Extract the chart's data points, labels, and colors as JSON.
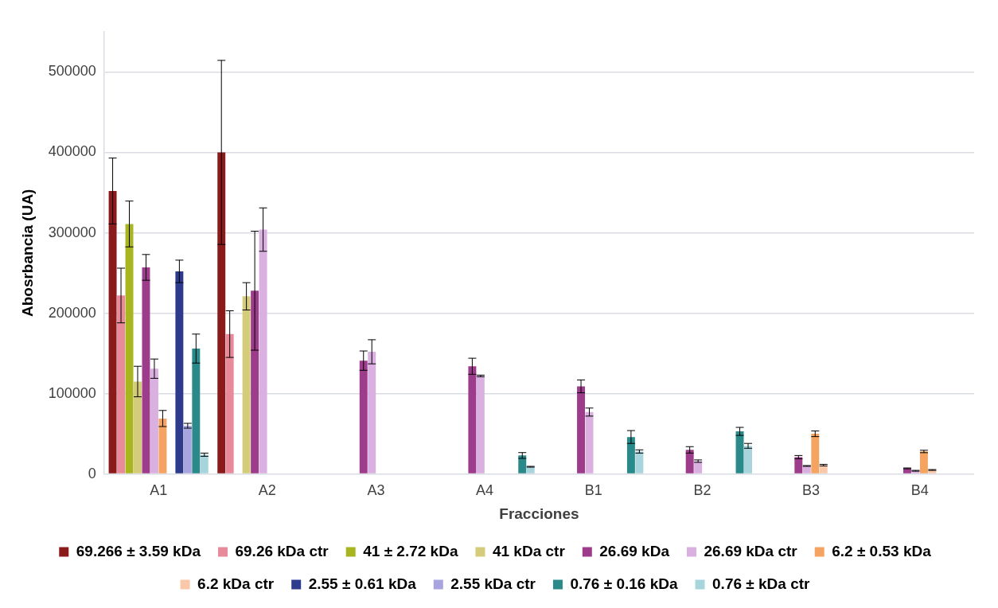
{
  "chart_data": {
    "type": "bar",
    "xlabel": "Fracciones",
    "ylabel": "Abosrbancia (UA)",
    "categories": [
      "A1",
      "A2",
      "A3",
      "A4",
      "B1",
      "B2",
      "B3",
      "B4"
    ],
    "ylim": [
      0,
      550000
    ],
    "yticks": [
      0,
      100000,
      200000,
      300000,
      400000,
      500000
    ],
    "grid": "y",
    "legend": "bottom",
    "series": [
      {
        "name": "69.266 ± 3.59 kDa",
        "color": "#8b1a1a",
        "values": [
          352000,
          400000,
          null,
          null,
          null,
          null,
          null,
          null
        ],
        "errors": [
          41000,
          114500,
          null,
          null,
          null,
          null,
          null,
          null
        ]
      },
      {
        "name": "69.26 kDa ctr",
        "color": "#e88a9a",
        "values": [
          222000,
          174000,
          null,
          null,
          null,
          null,
          null,
          null
        ],
        "errors": [
          34000,
          29000,
          null,
          null,
          null,
          null,
          null,
          null
        ]
      },
      {
        "name": "41 ± 2.72 kDa",
        "color": "#a9b520",
        "values": [
          311000,
          null,
          null,
          null,
          null,
          null,
          null,
          null
        ],
        "errors": [
          28500,
          null,
          null,
          null,
          null,
          null,
          null,
          null
        ]
      },
      {
        "name": "41 kDa ctr",
        "color": "#d4cc7a",
        "values": [
          115000,
          221000,
          null,
          null,
          null,
          null,
          null,
          null
        ],
        "errors": [
          19000,
          17000,
          null,
          null,
          null,
          null,
          null,
          null
        ]
      },
      {
        "name": "26.69 kDa",
        "color": "#9e3c8c",
        "values": [
          257000,
          228000,
          141000,
          134000,
          109000,
          30000,
          21000,
          7000
        ],
        "errors": [
          16000,
          74000,
          12000,
          10000,
          8000,
          4000,
          2000,
          500
        ]
      },
      {
        "name": "26.69 kDa ctr",
        "color": "#dab0e0",
        "values": [
          131000,
          304000,
          152000,
          122000,
          77000,
          16000,
          10000,
          4000
        ],
        "errors": [
          12000,
          27000,
          15000,
          1000,
          5000,
          1500,
          500,
          500
        ]
      },
      {
        "name": "6.2 ± 0.53 kDa",
        "color": "#f4a460",
        "values": [
          69000,
          null,
          null,
          null,
          null,
          null,
          50000,
          28000
        ],
        "errors": [
          10000,
          null,
          null,
          null,
          null,
          null,
          3500,
          1500
        ]
      },
      {
        "name": "6.2 kDa ctr",
        "color": "#f8c8a8",
        "values": [
          null,
          null,
          null,
          null,
          null,
          null,
          11000,
          5000
        ],
        "errors": [
          null,
          null,
          null,
          null,
          null,
          null,
          1000,
          500
        ]
      },
      {
        "name": "2.55 ± 0.61 kDa",
        "color": "#2e3a8c",
        "values": [
          252000,
          null,
          null,
          null,
          null,
          null,
          null,
          null
        ],
        "errors": [
          14000,
          null,
          null,
          null,
          null,
          null,
          null,
          null
        ]
      },
      {
        "name": "2.55 kDa ctr",
        "color": "#a8a4e0",
        "values": [
          60000,
          null,
          null,
          null,
          null,
          null,
          null,
          null
        ],
        "errors": [
          3000,
          null,
          null,
          null,
          null,
          null,
          null,
          null
        ]
      },
      {
        "name": "0.76 ± 0.16 kDa",
        "color": "#2a8a8a",
        "values": [
          156000,
          null,
          null,
          23000,
          46000,
          53000,
          null,
          null
        ],
        "errors": [
          18000,
          null,
          null,
          3600,
          8000,
          5000,
          null,
          null
        ]
      },
      {
        "name": "0.76 ± kDa ctr",
        "color": "#a8d4dc",
        "values": [
          24000,
          null,
          null,
          9000,
          28000,
          35000,
          null,
          null
        ],
        "errors": [
          2000,
          null,
          null,
          500,
          2000,
          3000,
          null,
          null
        ]
      }
    ]
  }
}
